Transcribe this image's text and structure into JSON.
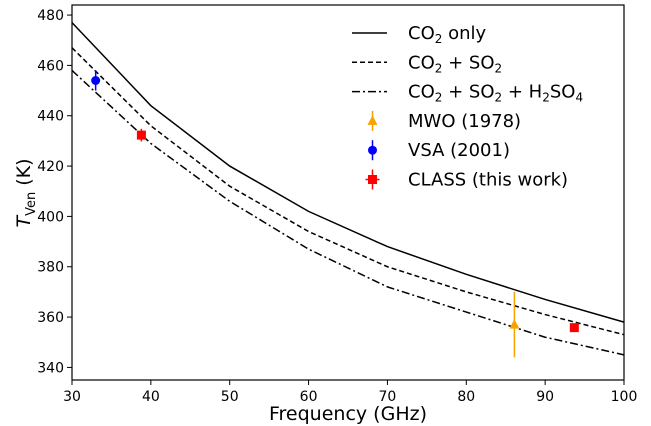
{
  "chart_data": {
    "type": "line",
    "title": "",
    "xlabel": "Frequency (GHz)",
    "ylabel_symbol": "T",
    "ylabel_subscript": "Ven",
    "ylabel_unit": " (K)",
    "xlim": [
      30,
      100
    ],
    "ylim": [
      335,
      484
    ],
    "xticks": [
      30,
      40,
      50,
      60,
      70,
      80,
      90,
      100
    ],
    "yticks": [
      340,
      360,
      380,
      400,
      420,
      440,
      460,
      480
    ],
    "legend_position": "top-right",
    "series": [
      {
        "name": "CO2 only",
        "legend": {
          "parts": [
            {
              "t": "CO"
            },
            {
              "t": "2",
              "sub": true
            },
            {
              "t": " only"
            }
          ]
        },
        "style": "solid",
        "color": "#000000",
        "x": [
          30,
          40,
          50,
          60,
          70,
          80,
          90,
          100
        ],
        "y": [
          477,
          444,
          420,
          402,
          388,
          377,
          367,
          358
        ]
      },
      {
        "name": "CO2 + SO2",
        "legend": {
          "parts": [
            {
              "t": "CO"
            },
            {
              "t": "2",
              "sub": true
            },
            {
              "t": " + SO"
            },
            {
              "t": "2",
              "sub": true
            }
          ]
        },
        "style": "dashed",
        "color": "#000000",
        "x": [
          30,
          40,
          50,
          60,
          70,
          80,
          90,
          100
        ],
        "y": [
          467,
          436,
          412,
          394,
          380,
          370,
          361,
          353
        ]
      },
      {
        "name": "CO2 + SO2 + H2SO4",
        "legend": {
          "parts": [
            {
              "t": "CO"
            },
            {
              "t": "2",
              "sub": true
            },
            {
              "t": " + SO"
            },
            {
              "t": "2",
              "sub": true
            },
            {
              "t": " + H"
            },
            {
              "t": "2",
              "sub": true
            },
            {
              "t": "SO"
            },
            {
              "t": "4",
              "sub": true
            }
          ]
        },
        "style": "dashdot",
        "color": "#000000",
        "x": [
          30,
          40,
          50,
          60,
          70,
          80,
          90,
          100
        ],
        "y": [
          458,
          429,
          406,
          387,
          372,
          362,
          352,
          345
        ]
      }
    ],
    "points": [
      {
        "name": "MWO (1978)",
        "marker": "triangle",
        "color": "#f5a300",
        "x": 86.1,
        "y": 357,
        "yerr": 13,
        "xerr": 0
      },
      {
        "name": "VSA (2001)",
        "marker": "circle",
        "color": "#0000ff",
        "x": 33.0,
        "y": 454,
        "yerr": 4,
        "xerr": 0
      },
      {
        "name": "CLASS (this work)",
        "marker": "square",
        "color": "#ff0000",
        "x": 38.8,
        "y": 432.3,
        "yerr": 2.5,
        "xerr": 0.3
      },
      {
        "name": "CLASS (this work)",
        "marker": "square",
        "color": "#ff0000",
        "x": 93.7,
        "y": 355.8,
        "yerr": 1.2,
        "xerr": 0.3
      }
    ]
  }
}
